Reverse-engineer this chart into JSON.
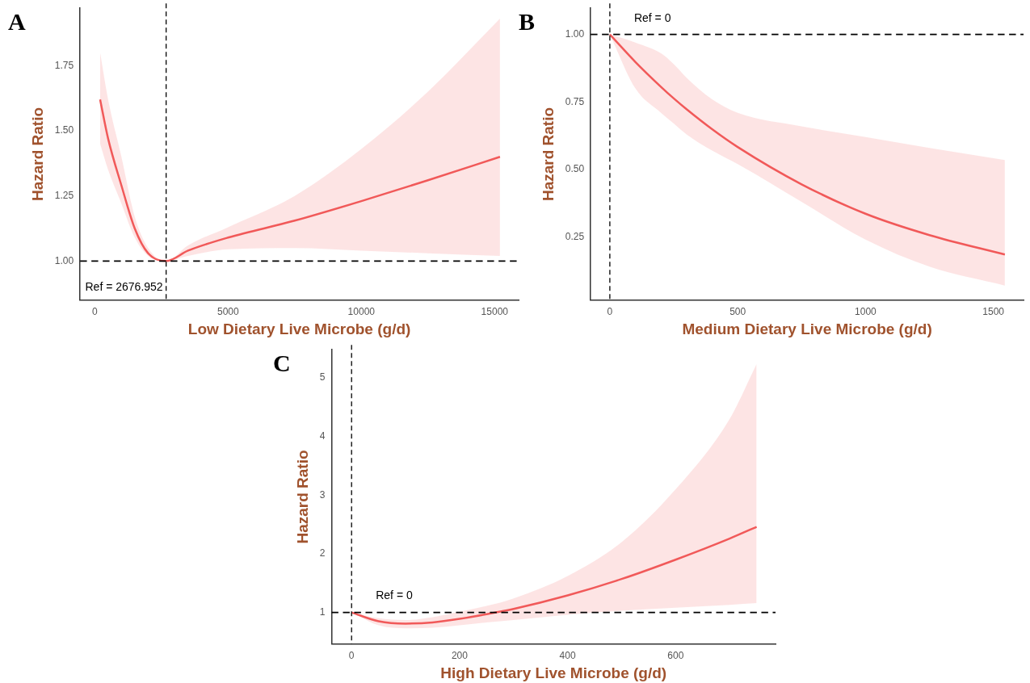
{
  "chart_data": [
    {
      "type": "line",
      "title": "A",
      "xlabel": "Low Dietary Live Microbe (g/d)",
      "ylabel": "Hazard Ratio",
      "xlim": [
        -550,
        15900
      ],
      "ylim": [
        0.85,
        1.97
      ],
      "xticks": [
        0,
        5000,
        10000,
        15000
      ],
      "yticks": [
        {
          "value": 1,
          "label": "1.00"
        },
        {
          "value": 1.25,
          "label": "1.25"
        },
        {
          "value": 1.5,
          "label": "1.50"
        },
        {
          "value": 1.75,
          "label": "1.75"
        }
      ],
      "grid": false,
      "legend": false,
      "marker": "none",
      "line_style": "solid",
      "ref_lines": [
        {
          "axis": "x",
          "value": 2676.952,
          "label": "Ref = 2676.952",
          "line_style": "dashed",
          "color": "#000000"
        },
        {
          "axis": "y",
          "value": 1,
          "line_style": "dashed",
          "color": "#000000"
        }
      ],
      "series": [
        {
          "color": "#f15a5a",
          "x": [
            200,
            500,
            1000,
            1500,
            2000,
            2677,
            3500,
            5000,
            7500,
            10000,
            12500,
            15200
          ],
          "values": [
            1.62,
            1.47,
            1.29,
            1.125,
            1.03,
            1.0,
            1.04,
            1.09,
            1.155,
            1.23,
            1.31,
            1.4
          ],
          "lower": [
            1.45,
            1.35,
            1.22,
            1.09,
            1.02,
            1.0,
            1.02,
            1.045,
            1.05,
            1.04,
            1.03,
            1.02
          ],
          "upper": [
            1.8,
            1.62,
            1.4,
            1.17,
            1.05,
            1.0,
            1.06,
            1.13,
            1.25,
            1.43,
            1.65,
            1.93
          ]
        }
      ]
    },
    {
      "type": "line",
      "title": "B",
      "xlabel": "Medium Dietary Live Microbe (g/d)",
      "ylabel": "Hazard Ratio",
      "xlim": [
        -75,
        1618
      ],
      "ylim": [
        0.016,
        1.097
      ],
      "xticks": [
        0,
        500,
        1000,
        1500
      ],
      "yticks": [
        {
          "value": 0.25,
          "label": "0.25"
        },
        {
          "value": 0.5,
          "label": "0.50"
        },
        {
          "value": 0.75,
          "label": "0.75"
        },
        {
          "value": 1,
          "label": "1.00"
        }
      ],
      "grid": false,
      "legend": false,
      "marker": "none",
      "line_style": "solid",
      "ref_lines": [
        {
          "axis": "x",
          "value": 0,
          "label": "Ref = 0",
          "line_style": "dashed",
          "color": "#000000"
        },
        {
          "axis": "y",
          "value": 1,
          "line_style": "dashed",
          "color": "#000000"
        }
      ],
      "series": [
        {
          "color": "#f15a5a",
          "x": [
            0,
            100,
            200,
            250,
            300,
            400,
            500,
            750,
            1000,
            1250,
            1545
          ],
          "values": [
            1.0,
            0.898,
            0.806,
            0.763,
            0.723,
            0.649,
            0.583,
            0.445,
            0.336,
            0.257,
            0.185
          ],
          "lower": [
            1.0,
            0.8,
            0.71,
            0.67,
            0.63,
            0.57,
            0.52,
            0.38,
            0.24,
            0.14,
            0.07
          ],
          "upper": [
            1.0,
            0.97,
            0.93,
            0.89,
            0.84,
            0.76,
            0.71,
            0.66,
            0.62,
            0.58,
            0.535
          ]
        }
      ]
    },
    {
      "type": "line",
      "title": "C",
      "xlabel": "High Dietary Live Microbe (g/d)",
      "ylabel": "Hazard Ratio",
      "xlim": [
        -37,
        785
      ],
      "ylim": [
        0.46,
        5.48
      ],
      "xticks": [
        0,
        200,
        400,
        600
      ],
      "yticks": [
        1,
        2,
        3,
        4,
        5
      ],
      "grid": false,
      "legend": false,
      "marker": "none",
      "line_style": "solid",
      "ref_lines": [
        {
          "axis": "x",
          "value": 0,
          "label": "Ref = 0",
          "line_style": "dashed",
          "color": "#000000"
        },
        {
          "axis": "y",
          "value": 1,
          "line_style": "dashed",
          "color": "#000000"
        }
      ],
      "series": [
        {
          "color": "#f15a5a",
          "x": [
            0,
            50,
            100,
            150,
            200,
            250,
            300,
            400,
            500,
            600,
            700,
            750
          ],
          "values": [
            1.0,
            0.85,
            0.81,
            0.83,
            0.89,
            0.97,
            1.06,
            1.29,
            1.57,
            1.9,
            2.26,
            2.46
          ],
          "lower": [
            1.0,
            0.78,
            0.73,
            0.74,
            0.78,
            0.83,
            0.87,
            0.96,
            1.03,
            1.08,
            1.13,
            1.16
          ],
          "upper": [
            1.0,
            0.9,
            0.87,
            0.92,
            1.01,
            1.11,
            1.24,
            1.62,
            2.2,
            3.1,
            4.3,
            5.24
          ]
        }
      ]
    }
  ]
}
